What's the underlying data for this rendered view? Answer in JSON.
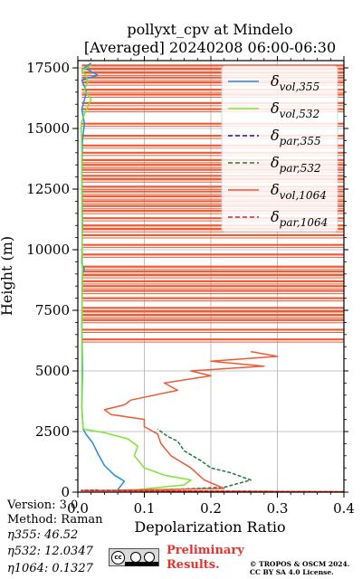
{
  "chart_data": {
    "type": "line",
    "title": [
      "pollyxt_cpv at Mindelo",
      "[Averaged] 20240208 06:00-06:30"
    ],
    "xlabel": "Depolarization Ratio",
    "ylabel": "Height (m)",
    "xlim": [
      0.0,
      0.4
    ],
    "ylim": [
      0,
      17800
    ],
    "xticks": [
      0.0,
      0.1,
      0.2,
      0.3,
      0.4
    ],
    "xtick_labels": [
      "0.0",
      "0.1",
      "0.2",
      "0.3",
      "0.4"
    ],
    "yticks": [
      0,
      2500,
      5000,
      7500,
      10000,
      12500,
      15000,
      17500
    ],
    "ytick_labels": [
      "0",
      "2500",
      "5000",
      "7500",
      "10000",
      "12500",
      "15000",
      "17500"
    ],
    "grid": true,
    "legend_position": "top-right",
    "legend": [
      {
        "base": "δ",
        "sub": "vol,355"
      },
      {
        "base": "δ",
        "sub": "vol,532"
      },
      {
        "base": "δ",
        "sub": "par,355"
      },
      {
        "base": "δ",
        "sub": "par,532"
      },
      {
        "base": "δ",
        "sub": "vol,1064"
      },
      {
        "base": "δ",
        "sub": "par,1064"
      }
    ],
    "series": [
      {
        "key": "vol355",
        "color": "#1f8fe0",
        "style": "solid",
        "points": [
          [
            0.06,
            100
          ],
          [
            0.07,
            450
          ],
          [
            0.055,
            700
          ],
          [
            0.04,
            1100
          ],
          [
            0.03,
            1600
          ],
          [
            0.022,
            2050
          ],
          [
            0.012,
            2400
          ],
          [
            0.008,
            2600
          ],
          [
            0.006,
            3500
          ],
          [
            0.007,
            5000
          ],
          [
            0.006,
            7000
          ],
          [
            0.007,
            9000
          ],
          [
            0.01,
            9200
          ],
          [
            0.006,
            9400
          ],
          [
            0.007,
            11000
          ],
          [
            0.006,
            13000
          ],
          [
            0.007,
            14500
          ],
          [
            0.01,
            15200
          ],
          [
            0.006,
            15800
          ],
          [
            0.013,
            16500
          ],
          [
            0.006,
            17000
          ],
          [
            0.03,
            17200
          ],
          [
            0.01,
            17500
          ],
          [
            0.02,
            17700
          ]
        ]
      },
      {
        "key": "vol532",
        "color": "#7fe52e",
        "style": "solid",
        "points": [
          [
            0.09,
            100
          ],
          [
            0.16,
            300
          ],
          [
            0.17,
            500
          ],
          [
            0.13,
            700
          ],
          [
            0.1,
            1000
          ],
          [
            0.085,
            1500
          ],
          [
            0.09,
            1900
          ],
          [
            0.075,
            2200
          ],
          [
            0.04,
            2450
          ],
          [
            0.008,
            2600
          ],
          [
            0.006,
            3500
          ],
          [
            0.006,
            6000
          ],
          [
            0.007,
            9000
          ],
          [
            0.006,
            12000
          ],
          [
            0.006,
            14000
          ],
          [
            0.005,
            15200
          ],
          [
            0.01,
            15600
          ],
          [
            0.02,
            16200
          ],
          [
            0.01,
            16600
          ],
          [
            0.015,
            16900
          ],
          [
            0.012,
            17200
          ],
          [
            0.006,
            17400
          ],
          [
            0.02,
            17600
          ]
        ]
      },
      {
        "key": "par532",
        "color": "#1a7a3a",
        "style": "dashed",
        "points": [
          [
            0.13,
            100
          ],
          [
            0.22,
            200
          ],
          [
            0.26,
            500
          ],
          [
            0.23,
            800
          ],
          [
            0.2,
            1000
          ],
          [
            0.185,
            1300
          ],
          [
            0.16,
            1700
          ],
          [
            0.15,
            2100
          ],
          [
            0.135,
            2300
          ],
          [
            0.12,
            2600
          ]
        ]
      },
      {
        "key": "vol1064",
        "color": "#f05a35",
        "style": "solid",
        "points": [
          [
            0.4,
            20
          ],
          [
            0.005,
            60
          ],
          [
            0.22,
            150
          ],
          [
            0.19,
            500
          ],
          [
            0.17,
            1000
          ],
          [
            0.14,
            1500
          ],
          [
            0.125,
            2000
          ],
          [
            0.12,
            2400
          ],
          [
            0.1,
            2700
          ],
          [
            0.1,
            3000
          ],
          [
            0.05,
            3200
          ],
          [
            0.04,
            3400
          ],
          [
            0.07,
            3600
          ],
          [
            0.08,
            3800
          ],
          [
            0.15,
            4200
          ],
          [
            0.13,
            4500
          ],
          [
            0.2,
            4800
          ],
          [
            0.17,
            5000
          ],
          [
            0.28,
            5200
          ],
          [
            0.2,
            5400
          ],
          [
            0.3,
            5600
          ],
          [
            0.26,
            5800
          ]
        ]
      },
      {
        "key": "par1064",
        "color": "#d62728",
        "style": "dashed",
        "points": [
          [
            0.4,
            15
          ],
          [
            0.005,
            70
          ],
          [
            0.03,
            90
          ]
        ]
      }
    ],
    "vol1064_spikes": [
      6300,
      6700,
      7100,
      7300,
      7450,
      7600,
      8000,
      8300,
      8500,
      8700,
      8950,
      9100,
      9300,
      9800,
      10200,
      10600,
      10850,
      11000,
      11300,
      11600,
      11800,
      12000,
      12200,
      12400,
      12600,
      12900,
      13050,
      13300,
      13500,
      13700,
      14000,
      14300,
      14700,
      15200,
      15800,
      16050,
      16400,
      16600,
      16900,
      17100,
      17300,
      17450,
      17600
    ]
  },
  "info": {
    "version": "Version: 3.0",
    "method": "Method: Raman",
    "eta355": "η355:  46.52",
    "eta532": "η532: 12.0347",
    "eta1064": "η1064: 0.1327"
  },
  "preliminary": [
    "Preliminary",
    "Results."
  ],
  "license": [
    "© TROPOS & OSCM 2024.",
    "CC BY SA 4.0 License."
  ],
  "cc_badge": {
    "cc": "cc",
    "by": "BY",
    "sa": "SA"
  }
}
